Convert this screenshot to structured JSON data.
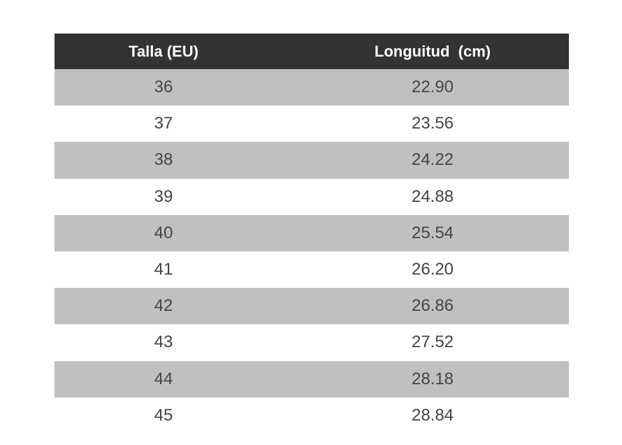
{
  "table": {
    "header": [
      "Talla (EU)",
      "Longuitud  (cm)"
    ],
    "rows": [
      [
        "36",
        "22.90"
      ],
      [
        "37",
        "23.56"
      ],
      [
        "38",
        "24.22"
      ],
      [
        "39",
        "24.88"
      ],
      [
        "40",
        "25.54"
      ],
      [
        "41",
        "26.20"
      ],
      [
        "42",
        "26.86"
      ],
      [
        "43",
        "27.52"
      ],
      [
        "44",
        "28.18"
      ],
      [
        "45",
        "28.84"
      ]
    ]
  }
}
